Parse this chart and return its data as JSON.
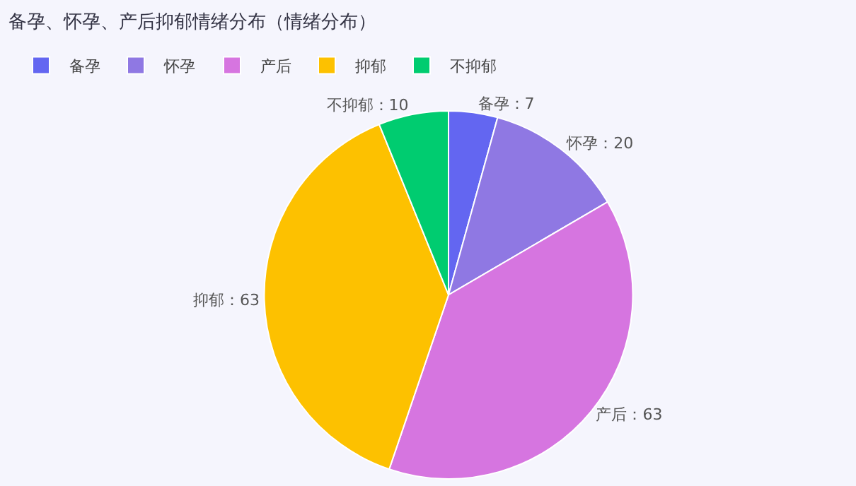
{
  "chart_data": {
    "type": "pie",
    "title": "备孕、怀孕、产后抑郁情绪分布（情绪分布）",
    "categories": [
      "备孕",
      "怀孕",
      "产后",
      "抑郁",
      "不抑郁"
    ],
    "values": [
      7,
      20,
      63,
      63,
      10
    ],
    "colors": [
      "#6366f1",
      "#8f78e3",
      "#d675e0",
      "#fdc100",
      "#00cc70"
    ],
    "value_labels": [
      "备孕：7",
      "怀孕：20",
      "产后：63",
      "抑郁：63",
      "不抑郁：10"
    ],
    "legend": "top left"
  }
}
